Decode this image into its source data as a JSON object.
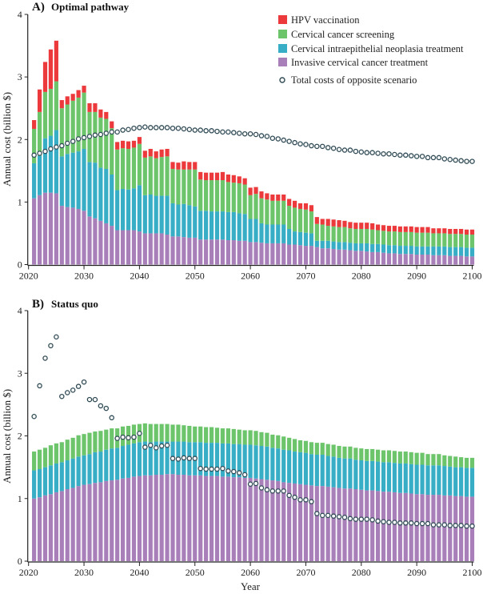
{
  "colors": {
    "hpv": "#ec3a3c",
    "screening": "#6cc56b",
    "cin": "#37aec6",
    "invasive": "#a97fb9",
    "dot_fill": "#ffffff",
    "dot_stroke": "#2f4a55"
  },
  "legend": {
    "hpv": "HPV vaccination",
    "screening": "Cervical cancer screening",
    "cin": "Cervical intraepithelial neoplasia treatment",
    "invasive": "Invasive cervical cancer treatment",
    "opposite": "Total costs of opposite scenario"
  },
  "chart_data": [
    {
      "type": "bar",
      "stacked": true,
      "panel_label": "A)",
      "title": "Optimal pathway",
      "xlabel": "",
      "ylabel": "Annual cost (billion $)",
      "xlim": [
        2020,
        2100
      ],
      "ylim": [
        0,
        4
      ],
      "xticks": [
        2020,
        2030,
        2040,
        2050,
        2060,
        2070,
        2080,
        2090,
        2100
      ],
      "yticks": [
        0,
        1,
        2,
        3,
        4
      ],
      "legend_position": "top-right",
      "x_start": 2021,
      "series": [
        {
          "name": "Invasive cervical cancer treatment",
          "key": "invasive",
          "values": [
            1.06,
            1.11,
            1.15,
            1.15,
            1.14,
            0.94,
            0.92,
            0.91,
            0.89,
            0.86,
            0.77,
            0.74,
            0.7,
            0.66,
            0.62,
            0.55,
            0.55,
            0.55,
            0.55,
            0.53,
            0.5,
            0.5,
            0.5,
            0.5,
            0.48,
            0.45,
            0.45,
            0.44,
            0.43,
            0.43,
            0.4,
            0.4,
            0.4,
            0.4,
            0.4,
            0.39,
            0.39,
            0.38,
            0.38,
            0.36,
            0.36,
            0.35,
            0.34,
            0.34,
            0.34,
            0.34,
            0.32,
            0.32,
            0.31,
            0.3,
            0.3,
            0.28,
            0.26,
            0.26,
            0.25,
            0.24,
            0.24,
            0.23,
            0.22,
            0.22,
            0.21,
            0.2,
            0.2,
            0.19,
            0.18,
            0.18,
            0.17,
            0.17,
            0.17,
            0.16,
            0.16,
            0.16,
            0.15,
            0.15,
            0.15,
            0.14,
            0.14,
            0.14,
            0.13,
            0.13
          ]
        },
        {
          "name": "Cervical intraepithelial neoplasia treatment",
          "key": "cin",
          "values": [
            0.56,
            0.63,
            0.87,
            0.91,
            1.01,
            0.79,
            0.85,
            0.88,
            0.92,
            0.99,
            0.87,
            0.89,
            0.85,
            0.87,
            0.82,
            0.64,
            0.66,
            0.65,
            0.67,
            0.74,
            0.61,
            0.62,
            0.6,
            0.6,
            0.62,
            0.53,
            0.51,
            0.53,
            0.52,
            0.5,
            0.46,
            0.46,
            0.45,
            0.45,
            0.45,
            0.45,
            0.45,
            0.44,
            0.43,
            0.37,
            0.37,
            0.31,
            0.3,
            0.3,
            0.3,
            0.3,
            0.25,
            0.21,
            0.21,
            0.21,
            0.2,
            0.1,
            0.12,
            0.12,
            0.12,
            0.12,
            0.12,
            0.12,
            0.12,
            0.12,
            0.13,
            0.13,
            0.13,
            0.13,
            0.13,
            0.13,
            0.13,
            0.13,
            0.13,
            0.13,
            0.13,
            0.13,
            0.14,
            0.14,
            0.14,
            0.14,
            0.14,
            0.14,
            0.14,
            0.14
          ]
        },
        {
          "name": "Cervical cancer screening",
          "key": "screening",
          "values": [
            0.55,
            0.7,
            0.74,
            0.75,
            0.78,
            0.77,
            0.79,
            0.83,
            0.86,
            0.9,
            0.8,
            0.81,
            0.8,
            0.8,
            0.74,
            0.65,
            0.65,
            0.65,
            0.65,
            0.66,
            0.6,
            0.61,
            0.6,
            0.62,
            0.63,
            0.55,
            0.56,
            0.55,
            0.57,
            0.59,
            0.5,
            0.49,
            0.5,
            0.5,
            0.5,
            0.48,
            0.47,
            0.48,
            0.47,
            0.38,
            0.4,
            0.4,
            0.4,
            0.38,
            0.38,
            0.38,
            0.37,
            0.38,
            0.37,
            0.37,
            0.35,
            0.27,
            0.26,
            0.24,
            0.24,
            0.24,
            0.24,
            0.23,
            0.23,
            0.23,
            0.23,
            0.23,
            0.22,
            0.22,
            0.22,
            0.22,
            0.22,
            0.22,
            0.22,
            0.22,
            0.22,
            0.22,
            0.21,
            0.21,
            0.21,
            0.21,
            0.21,
            0.21,
            0.21,
            0.21
          ]
        },
        {
          "name": "HPV vaccination",
          "key": "hpv",
          "values": [
            0.14,
            0.36,
            0.48,
            0.63,
            0.65,
            0.13,
            0.13,
            0.11,
            0.12,
            0.11,
            0.14,
            0.14,
            0.13,
            0.11,
            0.11,
            0.12,
            0.12,
            0.12,
            0.11,
            0.11,
            0.11,
            0.12,
            0.11,
            0.12,
            0.12,
            0.11,
            0.11,
            0.13,
            0.12,
            0.12,
            0.12,
            0.12,
            0.12,
            0.12,
            0.13,
            0.12,
            0.12,
            0.11,
            0.1,
            0.12,
            0.11,
            0.11,
            0.1,
            0.1,
            0.1,
            0.1,
            0.11,
            0.11,
            0.09,
            0.1,
            0.1,
            0.11,
            0.09,
            0.11,
            0.11,
            0.11,
            0.1,
            0.1,
            0.1,
            0.1,
            0.1,
            0.1,
            0.09,
            0.09,
            0.09,
            0.09,
            0.09,
            0.09,
            0.09,
            0.09,
            0.09,
            0.09,
            0.08,
            0.08,
            0.08,
            0.08,
            0.08,
            0.08,
            0.08,
            0.08
          ]
        }
      ],
      "overlay": {
        "name": "Total costs of opposite scenario",
        "source": "sum of panel B stacked series"
      }
    },
    {
      "type": "bar",
      "stacked": true,
      "panel_label": "B)",
      "title": "Status quo",
      "xlabel": "Year",
      "ylabel": "Annual cost (billion $)",
      "xlim": [
        2020,
        2100
      ],
      "ylim": [
        0,
        4
      ],
      "xticks": [
        2020,
        2030,
        2040,
        2050,
        2060,
        2070,
        2080,
        2090,
        2100
      ],
      "yticks": [
        0,
        1,
        2,
        3,
        4
      ],
      "x_start": 2021,
      "series": [
        {
          "name": "Invasive cervical cancer treatment",
          "key": "invasive",
          "values": [
            1.0,
            1.02,
            1.05,
            1.07,
            1.1,
            1.12,
            1.15,
            1.17,
            1.2,
            1.22,
            1.23,
            1.25,
            1.26,
            1.28,
            1.29,
            1.3,
            1.32,
            1.33,
            1.35,
            1.36,
            1.37,
            1.37,
            1.38,
            1.38,
            1.39,
            1.39,
            1.38,
            1.38,
            1.37,
            1.37,
            1.37,
            1.36,
            1.36,
            1.36,
            1.35,
            1.35,
            1.34,
            1.34,
            1.33,
            1.33,
            1.32,
            1.31,
            1.3,
            1.29,
            1.28,
            1.26,
            1.25,
            1.24,
            1.23,
            1.22,
            1.21,
            1.2,
            1.2,
            1.19,
            1.18,
            1.17,
            1.16,
            1.16,
            1.15,
            1.14,
            1.13,
            1.13,
            1.12,
            1.11,
            1.11,
            1.1,
            1.09,
            1.09,
            1.08,
            1.07,
            1.07,
            1.06,
            1.06,
            1.06,
            1.05,
            1.05,
            1.04,
            1.04,
            1.03,
            1.03
          ]
        },
        {
          "name": "Cervical intraepithelial neoplasia treatment",
          "key": "cin",
          "values": [
            0.45,
            0.45,
            0.45,
            0.46,
            0.46,
            0.46,
            0.46,
            0.47,
            0.47,
            0.47,
            0.48,
            0.49,
            0.49,
            0.5,
            0.51,
            0.51,
            0.52,
            0.53,
            0.53,
            0.54,
            0.54,
            0.53,
            0.53,
            0.53,
            0.52,
            0.52,
            0.53,
            0.53,
            0.53,
            0.53,
            0.53,
            0.53,
            0.53,
            0.53,
            0.53,
            0.53,
            0.53,
            0.53,
            0.53,
            0.53,
            0.53,
            0.53,
            0.53,
            0.52,
            0.52,
            0.52,
            0.52,
            0.51,
            0.51,
            0.51,
            0.5,
            0.5,
            0.5,
            0.49,
            0.49,
            0.48,
            0.48,
            0.48,
            0.47,
            0.47,
            0.47,
            0.47,
            0.47,
            0.47,
            0.47,
            0.47,
            0.47,
            0.47,
            0.47,
            0.47,
            0.47,
            0.47,
            0.47,
            0.47,
            0.47,
            0.46,
            0.46,
            0.46,
            0.46,
            0.46
          ]
        },
        {
          "name": "Cervical cancer screening",
          "key": "screening",
          "values": [
            0.3,
            0.31,
            0.31,
            0.32,
            0.32,
            0.32,
            0.33,
            0.33,
            0.34,
            0.34,
            0.34,
            0.33,
            0.33,
            0.32,
            0.32,
            0.31,
            0.31,
            0.3,
            0.3,
            0.29,
            0.29,
            0.29,
            0.28,
            0.28,
            0.28,
            0.27,
            0.27,
            0.26,
            0.26,
            0.25,
            0.25,
            0.25,
            0.25,
            0.24,
            0.24,
            0.24,
            0.24,
            0.23,
            0.23,
            0.23,
            0.23,
            0.22,
            0.22,
            0.21,
            0.21,
            0.21,
            0.2,
            0.2,
            0.19,
            0.19,
            0.19,
            0.19,
            0.19,
            0.19,
            0.19,
            0.19,
            0.19,
            0.19,
            0.19,
            0.19,
            0.19,
            0.19,
            0.19,
            0.19,
            0.19,
            0.19,
            0.19,
            0.19,
            0.19,
            0.19,
            0.19,
            0.18,
            0.18,
            0.18,
            0.17,
            0.17,
            0.17,
            0.16,
            0.16,
            0.16
          ]
        }
      ],
      "overlay": {
        "name": "Total costs of opposite scenario",
        "source": "sum of panel A stacked series"
      }
    }
  ]
}
